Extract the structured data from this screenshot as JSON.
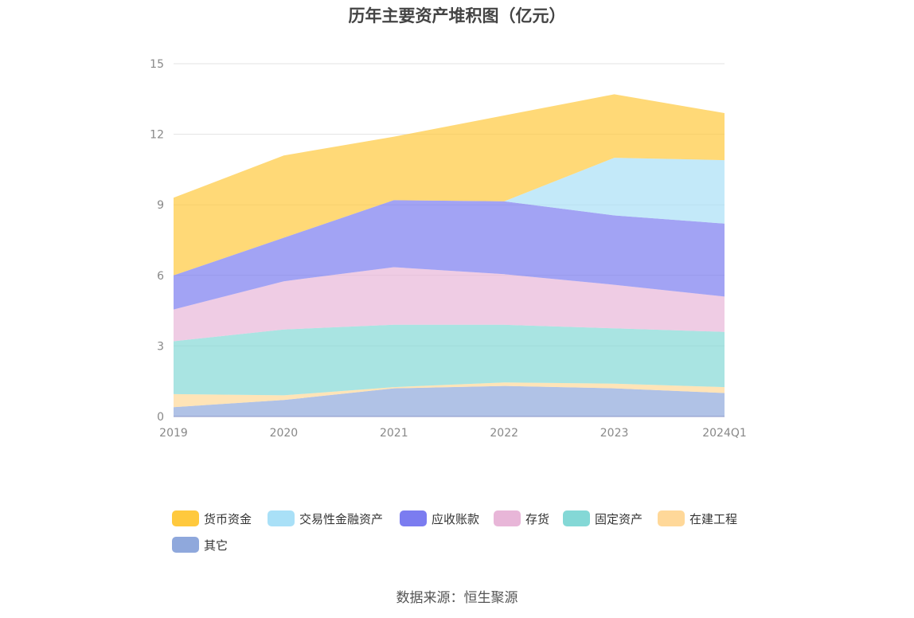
{
  "chart_data": {
    "type": "area",
    "stacked": true,
    "title": "历年主要资产堆积图（亿元）",
    "categories": [
      "2019",
      "2020",
      "2021",
      "2022",
      "2023",
      "2024Q1"
    ],
    "ylim": [
      0,
      15
    ],
    "yticks": [
      "0",
      "3",
      "6",
      "9",
      "12",
      "15"
    ],
    "grid": true,
    "legend_position": "bottom",
    "series": [
      {
        "name": "其它",
        "color": "#8fa8dc",
        "values": [
          0.4,
          0.7,
          1.2,
          1.3,
          1.2,
          1.0
        ]
      },
      {
        "name": "在建工程",
        "color": "#ffd899",
        "values": [
          0.55,
          0.2,
          0.05,
          0.15,
          0.2,
          0.25
        ]
      },
      {
        "name": "固定资产",
        "color": "#84d8d6",
        "values": [
          2.25,
          2.8,
          2.65,
          2.45,
          2.35,
          2.35
        ]
      },
      {
        "name": "存货",
        "color": "#e8b6d8",
        "values": [
          1.35,
          2.05,
          2.45,
          2.15,
          1.85,
          1.5
        ]
      },
      {
        "name": "应收账款",
        "color": "#7b7cf0",
        "values": [
          1.45,
          1.85,
          2.85,
          3.1,
          2.95,
          3.1
        ]
      },
      {
        "name": "交易性金融资产",
        "color": "#a9e0f7",
        "values": [
          0,
          0,
          0,
          0,
          2.45,
          2.7
        ]
      },
      {
        "name": "货币资金",
        "color": "#ffc93d",
        "values": [
          3.3,
          3.5,
          2.7,
          3.65,
          2.7,
          2.0
        ]
      }
    ],
    "legend_order": [
      "货币资金",
      "交易性金融资产",
      "应收账款",
      "存货",
      "固定资产",
      "在建工程",
      "其它"
    ]
  },
  "source_text": "数据来源：恒生聚源"
}
